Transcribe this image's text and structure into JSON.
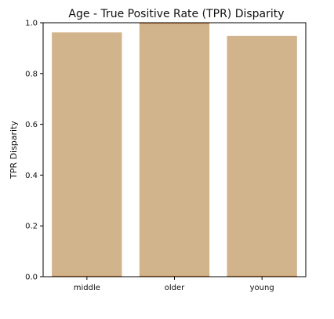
{
  "chart_data": {
    "type": "bar",
    "title": "Age - True Positive Rate (TPR) Disparity",
    "xlabel": "",
    "ylabel": "TPR Disparity",
    "categories": [
      "middle",
      "older",
      "young"
    ],
    "values": [
      0.962,
      1.0,
      0.948
    ],
    "ylim": [
      0,
      1.0
    ],
    "yticks": [
      "0.0",
      "0.2",
      "0.4",
      "0.6",
      "0.8",
      "1.0"
    ],
    "ytick_values": [
      0,
      0.2,
      0.4,
      0.6,
      0.8,
      1.0
    ],
    "grid": false,
    "legend": "none",
    "colors": {
      "bar_fill": "#d2b48c",
      "bar_edge": "#cd853f",
      "axis": "#000000"
    }
  }
}
